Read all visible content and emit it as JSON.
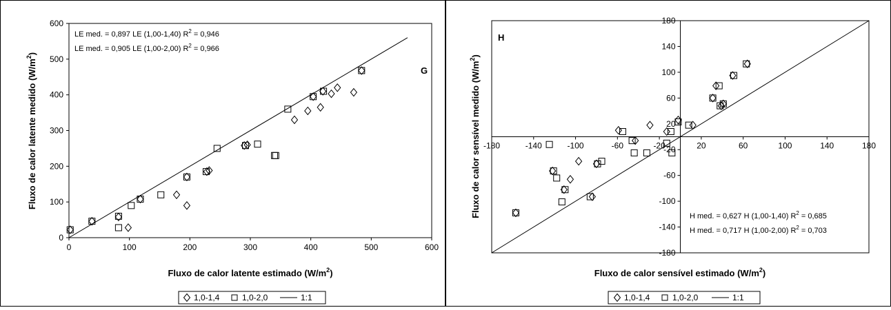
{
  "chart_data": [
    {
      "type": "scatter",
      "panel_label": "G",
      "xlabel": "Fluxo de calor latente estimado (W/m",
      "ylabel": "Fluxo de calor latente medido (W/m",
      "units_sup": "2",
      "axis_close": ")",
      "xlim": [
        0,
        600
      ],
      "ylim": [
        0,
        600
      ],
      "xticks": [
        "0",
        "100",
        "200",
        "300",
        "400",
        "500",
        "600"
      ],
      "yticks": [
        "0",
        "100",
        "200",
        "300",
        "400",
        "500",
        "600"
      ],
      "grid": false,
      "legend_placement": "bottom",
      "annotations": [
        {
          "pre": "LE med.  = 0,897  LE (1,00-1,40)  R",
          "sup": "2",
          "post": " = 0,946"
        },
        {
          "pre": "LE med.  = 0,905  LE (1,00-2,00)  R",
          "sup": "2",
          "post": " = 0,966"
        }
      ],
      "series": [
        {
          "name": "1,0-1,4",
          "marker": "diamond",
          "x": [
            2,
            38,
            82,
            98,
            118,
            178,
            195,
            195,
            228,
            232,
            290,
            295,
            373,
            395,
            404,
            416,
            420,
            434,
            444,
            471,
            484
          ],
          "y": [
            22,
            46,
            58,
            28,
            108,
            120,
            90,
            170,
            185,
            188,
            258,
            260,
            330,
            355,
            395,
            365,
            410,
            403,
            420,
            407,
            468
          ]
        },
        {
          "name": "1,0-2,0",
          "marker": "square",
          "x": [
            2,
            38,
            82,
            82,
            103,
            118,
            152,
            195,
            227,
            245,
            292,
            312,
            340,
            342,
            362,
            404,
            421,
            484
          ],
          "y": [
            22,
            46,
            28,
            60,
            90,
            108,
            120,
            170,
            185,
            250,
            258,
            262,
            230,
            230,
            360,
            395,
            410,
            468
          ]
        },
        {
          "name": "1:1",
          "marker": "line",
          "x": [
            0,
            560
          ],
          "y": [
            0,
            560
          ]
        }
      ]
    },
    {
      "type": "scatter",
      "panel_label": "H",
      "xlabel": "Fluxo de calor sensível estimado (W/m",
      "ylabel": "Fluxo de calor sensível medido (W/m",
      "units_sup": "2",
      "axis_close": ")",
      "xlim": [
        -180,
        180
      ],
      "ylim": [
        -180,
        180
      ],
      "xticks": [
        "-180",
        "-140",
        "-100",
        "-60",
        "-20",
        "20",
        "60",
        "100",
        "140",
        "180"
      ],
      "yticks": [
        "-180",
        "-140",
        "-100",
        "-60",
        "-20",
        "20",
        "60",
        "100",
        "140",
        "180"
      ],
      "grid": false,
      "legend_placement": "bottom",
      "annotations": [
        {
          "pre": "H med.  = 0,627  H (1,00-1,40)  R",
          "sup": "2",
          "post": " = 0,685"
        },
        {
          "pre": "H med.  = 0,717  H (1,00-2,00)  R",
          "sup": "2",
          "post": " = 0,703"
        }
      ],
      "series": [
        {
          "name": "1,0-1,4",
          "marker": "diamond",
          "x": [
            -157,
            -122,
            -111,
            -105,
            -97,
            -84,
            -80,
            -59,
            -43,
            -29,
            -13,
            -2,
            12,
            31,
            34,
            39,
            41,
            50,
            64
          ],
          "y": [
            -118,
            -53,
            -82,
            -66,
            -38,
            -93,
            -42,
            10,
            -6,
            18,
            8,
            26,
            18,
            60,
            79,
            48,
            51,
            95,
            113
          ]
        },
        {
          "name": "1,0-2,0",
          "marker": "square",
          "x": [
            -157,
            -125,
            -121,
            -118,
            -113,
            -110,
            -86,
            -79,
            -75,
            -55,
            -46,
            -44,
            -32,
            -13,
            -9,
            -8,
            -2,
            8,
            31,
            37,
            38,
            41,
            51,
            63
          ],
          "y": [
            -118,
            -12,
            -53,
            -64,
            -101,
            -82,
            -93,
            -42,
            -38,
            8,
            -6,
            -25,
            -25,
            -10,
            8,
            -25,
            23,
            18,
            60,
            79,
            48,
            51,
            95,
            113
          ]
        },
        {
          "name": "1:1",
          "marker": "line",
          "x": [
            -180,
            180
          ],
          "y": [
            -180,
            180
          ]
        }
      ]
    }
  ]
}
